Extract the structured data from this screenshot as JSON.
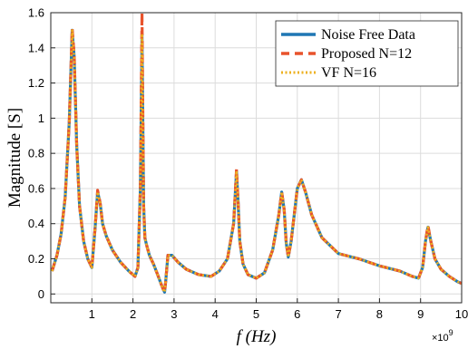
{
  "chart_data": {
    "type": "line",
    "xlabel": "f (Hz)",
    "x_exponent_label": "×10",
    "x_exponent_power": "9",
    "ylabel": "Magnitude [S]",
    "xlim": [
      0,
      10
    ],
    "ylim": [
      -0.05,
      1.6
    ],
    "xticks": [
      1,
      2,
      3,
      4,
      5,
      6,
      7,
      8,
      9,
      10
    ],
    "yticks": [
      0,
      0.2,
      0.4,
      0.6,
      0.8,
      1.0,
      1.2,
      1.4,
      1.6
    ],
    "ytick_labels": [
      "0",
      "0.2",
      "0.4",
      "0.6",
      "0.8",
      "1",
      "1.2",
      "1.4",
      "1.6"
    ],
    "xtick_labels": [
      "1",
      "2",
      "3",
      "4",
      "5",
      "6",
      "7",
      "8",
      "9",
      "10"
    ],
    "grid": true,
    "legend_position": "top-right",
    "x": [
      0.03,
      0.15,
      0.25,
      0.35,
      0.45,
      0.52,
      0.57,
      0.63,
      0.7,
      0.8,
      0.9,
      1.0,
      1.08,
      1.14,
      1.2,
      1.26,
      1.35,
      1.5,
      1.7,
      1.9,
      2.05,
      2.12,
      2.18,
      2.22,
      2.26,
      2.29,
      2.33,
      2.4,
      2.5,
      2.6,
      2.68,
      2.73,
      2.77,
      2.8,
      2.85,
      2.95,
      3.1,
      3.3,
      3.6,
      3.9,
      4.1,
      4.3,
      4.45,
      4.52,
      4.56,
      4.6,
      4.68,
      4.8,
      5.0,
      5.2,
      5.4,
      5.55,
      5.62,
      5.68,
      5.73,
      5.78,
      5.85,
      6.0,
      6.1,
      6.2,
      6.35,
      6.6,
      7.0,
      7.5,
      8.0,
      8.5,
      8.8,
      8.95,
      9.05,
      9.12,
      9.18,
      9.25,
      9.35,
      9.5,
      9.7,
      9.9,
      10.0
    ],
    "series": [
      {
        "name": "Noise Free Data",
        "color": "#1f77b4",
        "style": "solid",
        "values": [
          0.13,
          0.22,
          0.34,
          0.55,
          0.98,
          1.5,
          1.35,
          0.85,
          0.5,
          0.3,
          0.2,
          0.15,
          0.38,
          0.58,
          0.52,
          0.4,
          0.33,
          0.25,
          0.18,
          0.13,
          0.1,
          0.15,
          0.6,
          1.48,
          0.5,
          0.32,
          0.28,
          0.22,
          0.17,
          0.11,
          0.06,
          0.03,
          0.01,
          0.08,
          0.22,
          0.22,
          0.18,
          0.14,
          0.11,
          0.1,
          0.13,
          0.2,
          0.4,
          0.7,
          0.52,
          0.3,
          0.17,
          0.11,
          0.09,
          0.12,
          0.25,
          0.45,
          0.58,
          0.48,
          0.29,
          0.21,
          0.3,
          0.6,
          0.65,
          0.58,
          0.45,
          0.32,
          0.23,
          0.2,
          0.16,
          0.13,
          0.1,
          0.09,
          0.15,
          0.3,
          0.38,
          0.3,
          0.2,
          0.14,
          0.1,
          0.07,
          0.06
        ]
      },
      {
        "name": "Proposed N=12",
        "color": "#e8532c",
        "style": "dashed",
        "values": [
          0.13,
          0.22,
          0.34,
          0.55,
          0.98,
          1.51,
          1.36,
          0.85,
          0.5,
          0.3,
          0.2,
          0.15,
          0.38,
          0.59,
          0.52,
          0.4,
          0.33,
          0.25,
          0.18,
          0.13,
          0.1,
          0.15,
          0.6,
          1.6,
          0.5,
          0.32,
          0.28,
          0.22,
          0.17,
          0.11,
          0.06,
          0.03,
          0.01,
          0.08,
          0.22,
          0.22,
          0.18,
          0.14,
          0.11,
          0.1,
          0.13,
          0.2,
          0.4,
          0.71,
          0.52,
          0.3,
          0.17,
          0.11,
          0.09,
          0.12,
          0.25,
          0.45,
          0.58,
          0.48,
          0.29,
          0.21,
          0.3,
          0.6,
          0.65,
          0.58,
          0.45,
          0.32,
          0.23,
          0.2,
          0.16,
          0.13,
          0.1,
          0.09,
          0.15,
          0.3,
          0.39,
          0.3,
          0.2,
          0.14,
          0.1,
          0.07,
          0.06
        ]
      },
      {
        "name": "VF N=16",
        "color": "#edb120",
        "style": "dotted",
        "values": [
          0.13,
          0.22,
          0.34,
          0.55,
          0.98,
          1.5,
          1.35,
          0.85,
          0.5,
          0.3,
          0.2,
          0.15,
          0.38,
          0.58,
          0.52,
          0.4,
          0.33,
          0.25,
          0.18,
          0.13,
          0.1,
          0.15,
          0.6,
          1.48,
          0.5,
          0.32,
          0.28,
          0.22,
          0.17,
          0.11,
          0.06,
          0.03,
          0.01,
          0.08,
          0.22,
          0.22,
          0.18,
          0.14,
          0.11,
          0.1,
          0.13,
          0.2,
          0.4,
          0.7,
          0.52,
          0.3,
          0.17,
          0.11,
          0.09,
          0.12,
          0.25,
          0.45,
          0.58,
          0.48,
          0.29,
          0.21,
          0.3,
          0.6,
          0.65,
          0.58,
          0.45,
          0.32,
          0.23,
          0.2,
          0.16,
          0.13,
          0.1,
          0.09,
          0.15,
          0.3,
          0.38,
          0.3,
          0.2,
          0.14,
          0.1,
          0.07,
          0.06
        ]
      }
    ]
  }
}
